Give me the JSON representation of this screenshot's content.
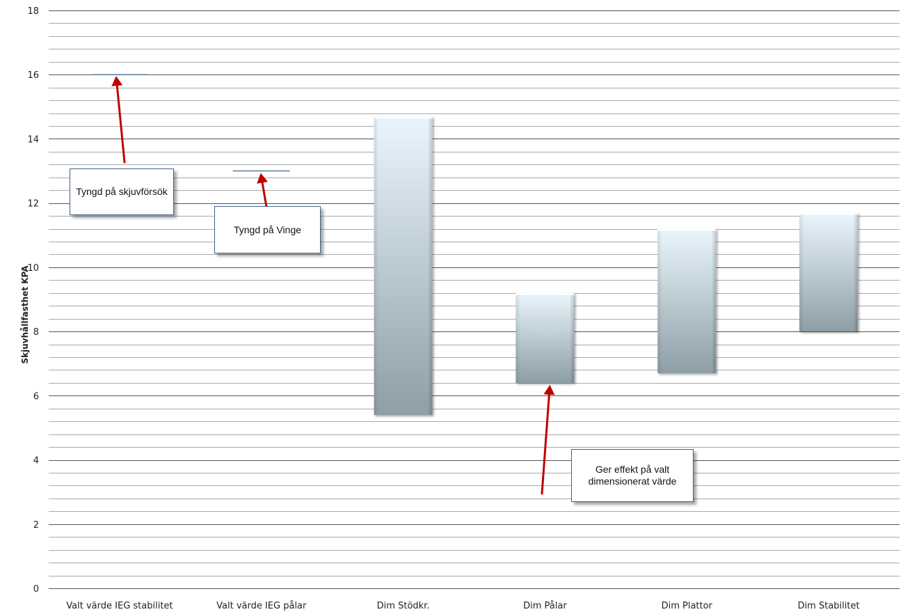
{
  "chart_data": {
    "type": "floating-bar",
    "categories": [
      "Valt värde IEG stabilitet",
      "Valt värde IEG pålar",
      "Dim Stödkr.",
      "Dim Pålar",
      "Dim Plattor",
      "Dim Stabilitet"
    ],
    "series": [
      {
        "ranges": [
          [
            16.0,
            16.0
          ],
          [
            13.0,
            13.0
          ],
          [
            5.4,
            14.7
          ],
          [
            6.4,
            9.2
          ],
          [
            6.7,
            11.2
          ],
          [
            8.0,
            11.7
          ]
        ]
      }
    ],
    "ylabel": "Skjuvhållfasthet  KPA",
    "xlabel": "",
    "ylim": [
      0,
      18
    ],
    "yticks": [
      0,
      2,
      4,
      6,
      8,
      10,
      12,
      14,
      16,
      18
    ],
    "grid": true,
    "minor_grid_step": 0.4,
    "annotations": [
      {
        "text": "Tyngd på skjuvförsök",
        "category_index": 0,
        "points_to": 16.0
      },
      {
        "text": "Tyngd på Vinge",
        "category_index": 1,
        "points_to": 13.0
      },
      {
        "text": "Ger effekt på valt dimensionerat värde",
        "category_index": 3,
        "points_to": 6.4
      }
    ]
  },
  "colors": {
    "bar_top": "#eaf6fd",
    "bar_bottom": "#8e9ea6",
    "marker_line": "#5b7c9a",
    "arrow": "#c00000",
    "grid": "#8c8c8c",
    "callout_border": "#3f5f8a"
  }
}
